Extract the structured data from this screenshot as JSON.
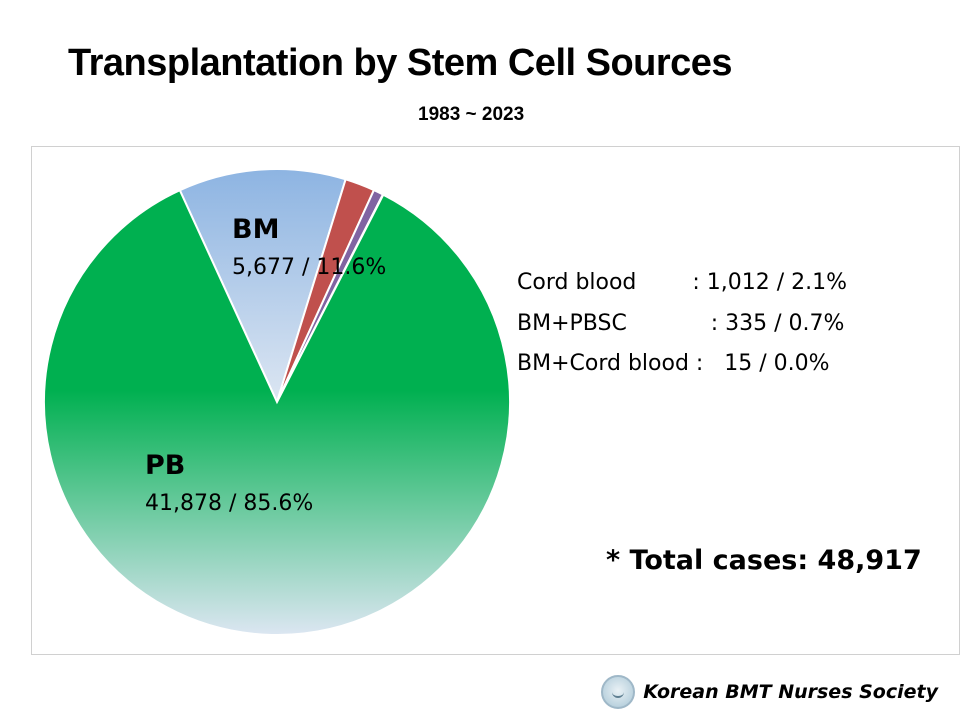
{
  "chart_data": {
    "type": "pie",
    "title": "Transplantation by Stem Cell Sources",
    "subtitle": "1983 ~ 2023",
    "slices": [
      {
        "name": "BM",
        "value": 5677,
        "percent": 11.6,
        "color": "#8db4e2",
        "label_name": "BM",
        "label_value": "5,677 / 11.6%"
      },
      {
        "name": "Cord blood",
        "value": 1012,
        "percent": 2.1,
        "color": "#c0504d"
      },
      {
        "name": "BM+PBSC",
        "value": 335,
        "percent": 0.7,
        "color": "#8064a2"
      },
      {
        "name": "BM+Cord blood",
        "value": 15,
        "percent": 0.0,
        "color": "#4f81bd"
      },
      {
        "name": "PB",
        "value": 41878,
        "percent": 85.6,
        "color": "#00b050",
        "label_name": "PB",
        "label_value": "41,878 / 85.6%"
      }
    ],
    "callouts": [
      "Cord blood        : 1,012 / 2.1%",
      "BM+PBSC            : 335 / 0.7%",
      "BM+Cord blood :   15 / 0.0%"
    ],
    "total_label": "* Total cases: 48,917"
  },
  "footer": {
    "organization": "Korean BMT Nurses Society",
    "logo_icon": "society-logo-icon"
  }
}
